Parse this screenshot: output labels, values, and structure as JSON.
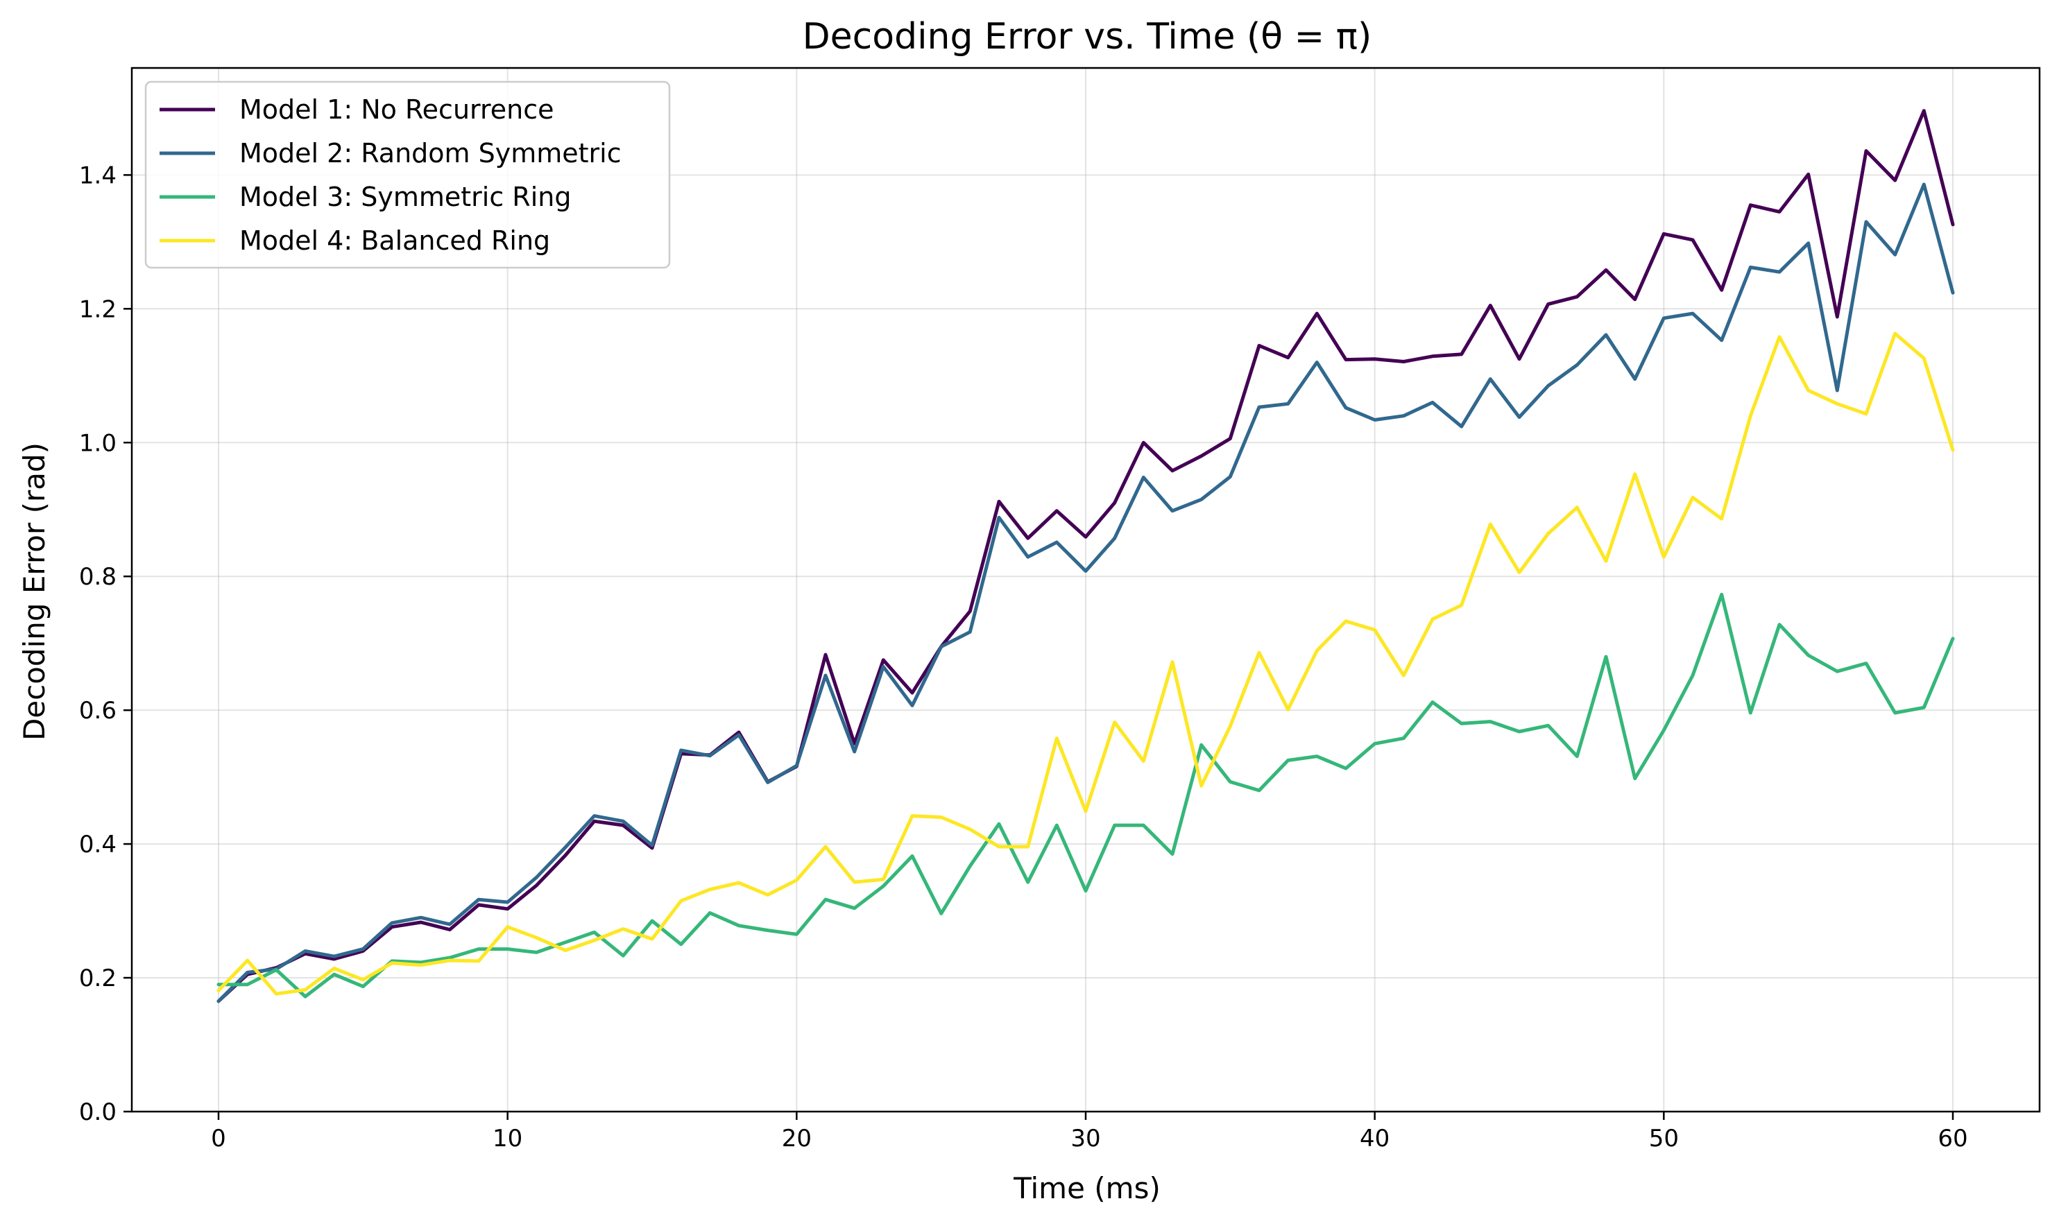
{
  "chart_data": {
    "type": "line",
    "title": "Decoding Error vs. Time (θ = π)",
    "xlabel": "Time (ms)",
    "ylabel": "Decoding Error (rad)",
    "xlim": [
      -3,
      63
    ],
    "ylim": [
      0,
      1.56
    ],
    "xticks": [
      0,
      10,
      20,
      30,
      40,
      50,
      60
    ],
    "yticks": [
      0.0,
      0.2,
      0.4,
      0.6,
      0.8,
      1.0,
      1.2,
      1.4
    ],
    "x_tick_labels": [
      "0",
      "10",
      "20",
      "30",
      "40",
      "50",
      "60"
    ],
    "y_tick_labels": [
      "0.0",
      "0.2",
      "0.4",
      "0.6",
      "0.8",
      "1.0",
      "1.2",
      "1.4"
    ],
    "grid": true,
    "legend_position": "top-left",
    "x": [
      0,
      1,
      2,
      3,
      4,
      5,
      6,
      7,
      8,
      9,
      10,
      11,
      12,
      13,
      14,
      15,
      16,
      17,
      18,
      19,
      20,
      21,
      22,
      23,
      24,
      25,
      26,
      27,
      28,
      29,
      30,
      31,
      32,
      33,
      34,
      35,
      36,
      37,
      38,
      39,
      40,
      41,
      42,
      43,
      44,
      45,
      46,
      47,
      48,
      49,
      50,
      51,
      52,
      53,
      54,
      55,
      56,
      57,
      58,
      59,
      60
    ],
    "series": [
      {
        "name": "Model 1: No Recurrence",
        "color": "#440154",
        "values": [
          0.165,
          0.205,
          0.215,
          0.236,
          0.228,
          0.24,
          0.276,
          0.283,
          0.272,
          0.309,
          0.303,
          0.338,
          0.383,
          0.434,
          0.428,
          0.394,
          0.535,
          0.533,
          0.567,
          0.493,
          0.516,
          0.683,
          0.55,
          0.675,
          0.626,
          0.695,
          0.748,
          0.912,
          0.857,
          0.898,
          0.859,
          0.91,
          1.0,
          0.958,
          0.98,
          1.006,
          1.145,
          1.127,
          1.193,
          1.124,
          1.125,
          1.121,
          1.129,
          1.132,
          1.205,
          1.125,
          1.207,
          1.218,
          1.258,
          1.214,
          1.312,
          1.303,
          1.228,
          1.355,
          1.345,
          1.401,
          1.188,
          1.436,
          1.392,
          1.496,
          1.326
        ]
      },
      {
        "name": "Model 2: Random Symmetric",
        "color": "#31688e",
        "values": [
          0.165,
          0.208,
          0.213,
          0.24,
          0.232,
          0.243,
          0.282,
          0.29,
          0.28,
          0.317,
          0.313,
          0.35,
          0.395,
          0.442,
          0.434,
          0.398,
          0.54,
          0.532,
          0.563,
          0.492,
          0.517,
          0.652,
          0.538,
          0.665,
          0.607,
          0.695,
          0.717,
          0.888,
          0.829,
          0.851,
          0.808,
          0.857,
          0.948,
          0.898,
          0.915,
          0.949,
          1.053,
          1.058,
          1.12,
          1.052,
          1.034,
          1.04,
          1.06,
          1.024,
          1.095,
          1.038,
          1.085,
          1.116,
          1.161,
          1.095,
          1.186,
          1.193,
          1.153,
          1.262,
          1.255,
          1.298,
          1.078,
          1.33,
          1.281,
          1.386,
          1.224
        ]
      },
      {
        "name": "Model 3: Symmetric Ring",
        "color": "#35b779",
        "values": [
          0.19,
          0.19,
          0.212,
          0.172,
          0.205,
          0.187,
          0.225,
          0.223,
          0.23,
          0.243,
          0.243,
          0.238,
          0.253,
          0.268,
          0.233,
          0.285,
          0.25,
          0.297,
          0.278,
          0.271,
          0.265,
          0.317,
          0.304,
          0.337,
          0.382,
          0.296,
          0.367,
          0.43,
          0.343,
          0.428,
          0.33,
          0.428,
          0.428,
          0.385,
          0.548,
          0.493,
          0.48,
          0.525,
          0.531,
          0.513,
          0.55,
          0.558,
          0.612,
          0.58,
          0.583,
          0.568,
          0.577,
          0.531,
          0.68,
          0.498,
          0.57,
          0.652,
          0.773,
          0.596,
          0.728,
          0.682,
          0.658,
          0.67,
          0.596,
          0.604,
          0.707
        ]
      },
      {
        "name": "Model 4: Balanced Ring",
        "color": "#fde725",
        "values": [
          0.181,
          0.226,
          0.176,
          0.182,
          0.214,
          0.197,
          0.222,
          0.219,
          0.226,
          0.225,
          0.276,
          0.26,
          0.241,
          0.256,
          0.273,
          0.258,
          0.315,
          0.332,
          0.342,
          0.324,
          0.346,
          0.396,
          0.343,
          0.347,
          0.442,
          0.44,
          0.422,
          0.396,
          0.396,
          0.558,
          0.449,
          0.582,
          0.524,
          0.672,
          0.487,
          0.576,
          0.686,
          0.601,
          0.689,
          0.733,
          0.72,
          0.652,
          0.736,
          0.757,
          0.878,
          0.806,
          0.864,
          0.903,
          0.823,
          0.953,
          0.829,
          0.918,
          0.886,
          1.04,
          1.158,
          1.078,
          1.058,
          1.043,
          1.163,
          1.126,
          0.989
        ]
      }
    ]
  }
}
